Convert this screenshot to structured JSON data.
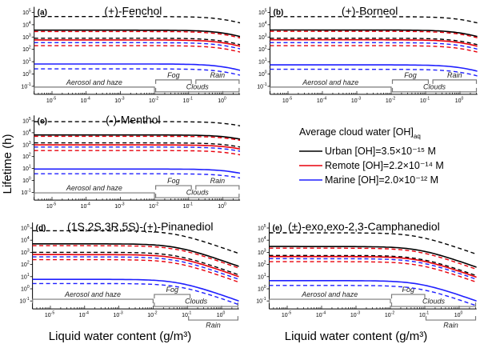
{
  "figure": {
    "ylabel": "Lifetime (h)",
    "xlabel": "Liquid water content (g/m³)",
    "legend": {
      "title": "Average cloud water [OH]",
      "title_sub": "aq",
      "entries": [
        {
          "label": "Urban [OH]=3.5×10⁻¹⁵ M",
          "color": "#000000"
        },
        {
          "label": "Remote [OH]=2.2×10⁻¹⁴ M",
          "color": "#e8000b"
        },
        {
          "label": "Marine [OH]=2.0×10⁻¹² M",
          "color": "#1f1fff"
        }
      ]
    }
  },
  "chart_data": [
    {
      "type": "line",
      "panel": "(a)",
      "title": "(+)-Fenchol",
      "xscale": "log",
      "yscale": "log",
      "xlim": [
        3e-06,
        3.2
      ],
      "ylim": [
        0.03,
        280000.0
      ],
      "x_tick_exponents": [
        -5,
        -4,
        -3,
        -2,
        -1,
        0
      ],
      "y_tick_exponents": [
        -1,
        0,
        1,
        2,
        3,
        4,
        5
      ],
      "rain_below_axis": false,
      "regions": [
        {
          "label": "Aerosol and haze",
          "range": [
            3e-06,
            0.01
          ]
        },
        {
          "label": "Fog",
          "range": [
            0.01,
            0.12
          ]
        },
        {
          "label": "Rain",
          "range": [
            0.15,
            3
          ]
        },
        {
          "label": "Clouds",
          "range": [
            0.01,
            3
          ]
        }
      ],
      "series": [
        {
          "color": "#000000",
          "style": "dashed",
          "y_start": 46000,
          "y_end": 14000
        },
        {
          "color": "#000000",
          "style": "solid",
          "y_start": 3600,
          "y_end": 1100
        },
        {
          "color": "#e8000b",
          "style": "dashed",
          "y_start": 2800,
          "y_end": 850
        },
        {
          "color": "#000000",
          "style": "dashed",
          "y_start": 800,
          "y_end": 240
        },
        {
          "color": "#e8000b",
          "style": "solid",
          "y_start": 580,
          "y_end": 180
        },
        {
          "color": "#1f1fff",
          "style": "dashed",
          "y_start": 350,
          "y_end": 110
        },
        {
          "color": "#e8000b",
          "style": "dashed",
          "y_start": 200,
          "y_end": 60
        },
        {
          "color": "#1f1fff",
          "style": "solid",
          "y_start": 6.5,
          "y_end": 2
        },
        {
          "color": "#1f1fff",
          "style": "dashed",
          "y_start": 2.6,
          "y_end": 0.8
        }
      ]
    },
    {
      "type": "line",
      "panel": "(b)",
      "title": "(+)-Borneol",
      "xscale": "log",
      "yscale": "log",
      "xlim": [
        3e-06,
        3.2
      ],
      "ylim": [
        0.03,
        280000.0
      ],
      "x_tick_exponents": [
        -5,
        -4,
        -3,
        -2,
        -1,
        0
      ],
      "y_tick_exponents": [
        -1,
        0,
        1,
        2,
        3,
        4,
        5
      ],
      "rain_below_axis": false,
      "regions": [
        {
          "label": "Aerosol and haze",
          "range": [
            3e-06,
            0.01
          ]
        },
        {
          "label": "Fog",
          "range": [
            0.01,
            0.12
          ]
        },
        {
          "label": "Rain",
          "range": [
            0.15,
            3
          ]
        },
        {
          "label": "Clouds",
          "range": [
            0.01,
            3
          ]
        }
      ],
      "series": [
        {
          "color": "#000000",
          "style": "dashed",
          "y_start": 45000,
          "y_end": 14000
        },
        {
          "color": "#000000",
          "style": "solid",
          "y_start": 3700,
          "y_end": 1100
        },
        {
          "color": "#e8000b",
          "style": "dashed",
          "y_start": 2900,
          "y_end": 870
        },
        {
          "color": "#000000",
          "style": "dashed",
          "y_start": 800,
          "y_end": 240
        },
        {
          "color": "#e8000b",
          "style": "solid",
          "y_start": 600,
          "y_end": 180
        },
        {
          "color": "#1f1fff",
          "style": "dashed",
          "y_start": 350,
          "y_end": 105
        },
        {
          "color": "#e8000b",
          "style": "dashed",
          "y_start": 200,
          "y_end": 60
        },
        {
          "color": "#1f1fff",
          "style": "solid",
          "y_start": 5.5,
          "y_end": 1.7
        },
        {
          "color": "#1f1fff",
          "style": "dashed",
          "y_start": 2.4,
          "y_end": 0.7
        }
      ]
    },
    {
      "type": "line",
      "panel": "(c)",
      "title": "(-)-Menthol",
      "xscale": "log",
      "yscale": "log",
      "xlim": [
        3e-06,
        3.2
      ],
      "ylim": [
        0.03,
        280000.0
      ],
      "x_tick_exponents": [
        -5,
        -4,
        -3,
        -2,
        -1,
        0
      ],
      "y_tick_exponents": [
        -1,
        0,
        1,
        2,
        3,
        4,
        5
      ],
      "rain_below_axis": false,
      "regions": [
        {
          "label": "Aerosol and haze",
          "range": [
            3e-06,
            0.01
          ]
        },
        {
          "label": "Fog",
          "range": [
            0.01,
            0.12
          ]
        },
        {
          "label": "Rain",
          "range": [
            0.15,
            3
          ]
        },
        {
          "label": "Clouds",
          "range": [
            0.01,
            3
          ]
        }
      ],
      "series": [
        {
          "color": "#000000",
          "style": "dashed",
          "y_start": 85000,
          "y_end": 38000
        },
        {
          "color": "#000000",
          "style": "solid",
          "y_start": 6500,
          "y_end": 2900
        },
        {
          "color": "#e8000b",
          "style": "dashed",
          "y_start": 5000,
          "y_end": 2300
        },
        {
          "color": "#000000",
          "style": "dashed",
          "y_start": 1400,
          "y_end": 630
        },
        {
          "color": "#e8000b",
          "style": "solid",
          "y_start": 950,
          "y_end": 430
        },
        {
          "color": "#1f1fff",
          "style": "dashed",
          "y_start": 630,
          "y_end": 280
        },
        {
          "color": "#e8000b",
          "style": "dashed",
          "y_start": 320,
          "y_end": 140
        },
        {
          "color": "#1f1fff",
          "style": "solid",
          "y_start": 9,
          "y_end": 4
        },
        {
          "color": "#1f1fff",
          "style": "dashed",
          "y_start": 3.6,
          "y_end": 1.6
        }
      ]
    },
    {
      "type": "line",
      "panel": "(d)",
      "title": "(1S,2S,3R,5S)-(+)-Pinanediol",
      "xscale": "log",
      "yscale": "log",
      "xlim": [
        3e-06,
        3.2
      ],
      "ylim": [
        0.03,
        280000.0
      ],
      "x_tick_exponents": [
        -5,
        -4,
        -3,
        -2,
        -1,
        0
      ],
      "y_tick_exponents": [
        -1,
        0,
        1,
        2,
        3,
        4,
        5
      ],
      "rain_below_axis": true,
      "regions": [
        {
          "label": "Aerosol and haze",
          "range": [
            3e-06,
            0.01
          ]
        },
        {
          "label": "Fog",
          "range": [
            0.01,
            0.12
          ]
        },
        {
          "label": "Clouds",
          "range": [
            0.01,
            3
          ]
        },
        {
          "label": "Rain",
          "range": [
            0.1,
            3
          ]
        }
      ],
      "series": [
        {
          "color": "#000000",
          "style": "dashed",
          "y_start": 60000,
          "y_end": 800
        },
        {
          "color": "#000000",
          "style": "solid",
          "y_start": 5000,
          "y_end": 70
        },
        {
          "color": "#e8000b",
          "style": "dashed",
          "y_start": 3500,
          "y_end": 50
        },
        {
          "color": "#000000",
          "style": "dashed",
          "y_start": 1000,
          "y_end": 14
        },
        {
          "color": "#e8000b",
          "style": "solid",
          "y_start": 650,
          "y_end": 10
        },
        {
          "color": "#1f1fff",
          "style": "dashed",
          "y_start": 420,
          "y_end": 6
        },
        {
          "color": "#e8000b",
          "style": "dashed",
          "y_start": 250,
          "y_end": 3.5
        },
        {
          "color": "#1f1fff",
          "style": "solid",
          "y_start": 6,
          "y_end": 0.1
        },
        {
          "color": "#1f1fff",
          "style": "dashed",
          "y_start": 2.7,
          "y_end": 0.05
        }
      ]
    },
    {
      "type": "line",
      "panel": "(e)",
      "title": "(±)-exo,exo-2,3-Camphanediol",
      "xscale": "log",
      "yscale": "log",
      "xlim": [
        3e-06,
        3.2
      ],
      "ylim": [
        0.03,
        280000.0
      ],
      "x_tick_exponents": [
        -5,
        -4,
        -3,
        -2,
        -1,
        0
      ],
      "y_tick_exponents": [
        -1,
        0,
        1,
        2,
        3,
        4,
        5
      ],
      "rain_below_axis": true,
      "regions": [
        {
          "label": "Aerosol and haze",
          "range": [
            3e-06,
            0.01
          ]
        },
        {
          "label": "Fog",
          "range": [
            0.01,
            0.1
          ]
        },
        {
          "label": "Clouds",
          "range": [
            0.01,
            3
          ]
        },
        {
          "label": "Rain",
          "range": [
            0.1,
            3
          ]
        }
      ],
      "series": [
        {
          "color": "#000000",
          "style": "dashed",
          "y_start": 40000,
          "y_end": 700
        },
        {
          "color": "#000000",
          "style": "solid",
          "y_start": 3000,
          "y_end": 60
        },
        {
          "color": "#e8000b",
          "style": "dashed",
          "y_start": 2200,
          "y_end": 40
        },
        {
          "color": "#000000",
          "style": "dashed",
          "y_start": 550,
          "y_end": 12
        },
        {
          "color": "#e8000b",
          "style": "solid",
          "y_start": 450,
          "y_end": 9
        },
        {
          "color": "#1f1fff",
          "style": "dashed",
          "y_start": 300,
          "y_end": 6
        },
        {
          "color": "#e8000b",
          "style": "dashed",
          "y_start": 170,
          "y_end": 3.5
        },
        {
          "color": "#1f1fff",
          "style": "solid",
          "y_start": 4.7,
          "y_end": 0.1
        },
        {
          "color": "#1f1fff",
          "style": "dashed",
          "y_start": 1.9,
          "y_end": 0.04
        }
      ]
    }
  ]
}
